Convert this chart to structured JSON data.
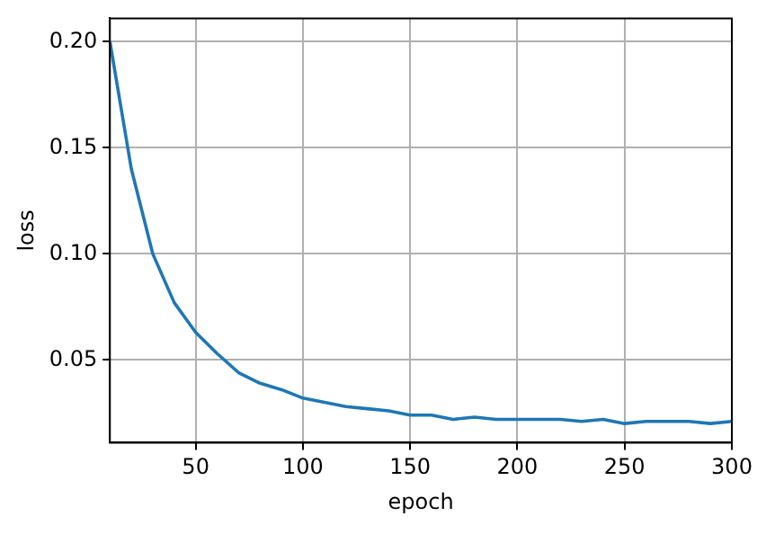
{
  "chart_data": {
    "type": "line",
    "xlabel": "epoch",
    "ylabel": "loss",
    "x": [
      10,
      20,
      30,
      40,
      50,
      60,
      70,
      80,
      90,
      100,
      110,
      120,
      130,
      140,
      150,
      160,
      170,
      180,
      190,
      200,
      210,
      220,
      230,
      240,
      250,
      260,
      270,
      280,
      290,
      300
    ],
    "series": [
      {
        "color": "#1f77b4",
        "values": [
          0.2,
          0.14,
          0.1,
          0.077,
          0.063,
          0.053,
          0.044,
          0.039,
          0.036,
          0.032,
          0.03,
          0.028,
          0.027,
          0.026,
          0.024,
          0.024,
          0.022,
          0.023,
          0.022,
          0.022,
          0.022,
          0.022,
          0.021,
          0.022,
          0.02,
          0.021,
          0.021,
          0.021,
          0.02,
          0.021
        ]
      }
    ],
    "xlim": [
      10,
      300
    ],
    "ylim": [
      0.011,
      0.211
    ],
    "xticks": [
      50,
      100,
      150,
      200,
      250,
      300
    ],
    "yticks": [
      {
        "value": 0.05,
        "label": "0.05"
      },
      {
        "value": 0.1,
        "label": "0.10"
      },
      {
        "value": 0.15,
        "label": "0.15"
      },
      {
        "value": 0.2,
        "label": "0.20"
      }
    ],
    "grid": true,
    "legend": false,
    "marker": "none",
    "line_style": "solid"
  }
}
